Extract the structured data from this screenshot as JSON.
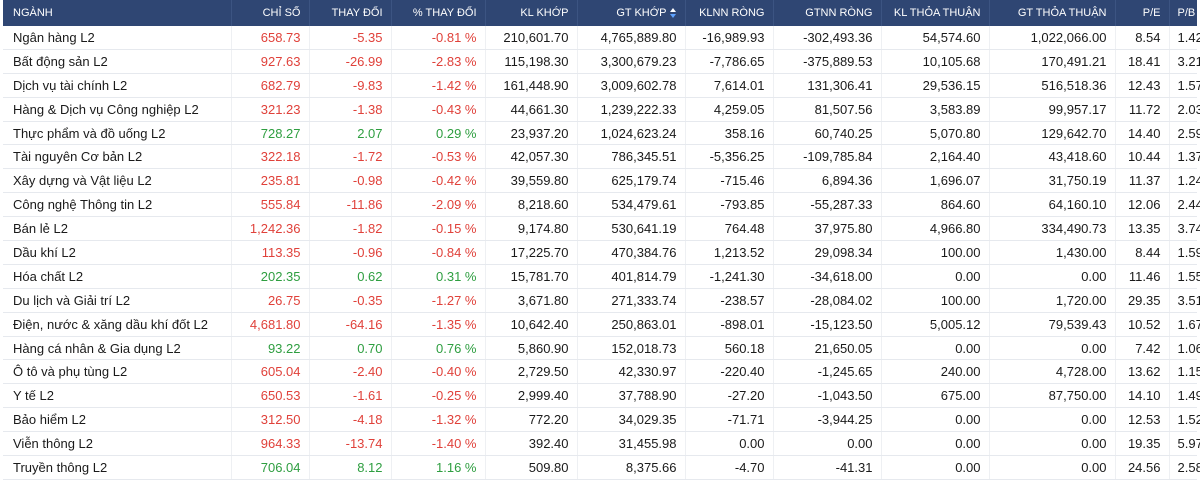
{
  "colors": {
    "header_bg": "#2f4673",
    "negative": "#e0413a",
    "positive": "#2e9e40"
  },
  "headers": {
    "nganh": "NGÀNH",
    "chi_so": "CHỈ SỐ",
    "thay_doi": "THAY ĐỔI",
    "pct_thay_doi": "% THAY ĐỔI",
    "kl_khop": "KL KHỚP",
    "gt_khop": "GT KHỚP",
    "klnn_rong": "KLNN RÒNG",
    "gtnn_rong": "GTNN RÒNG",
    "kl_thoa_thuan": "KL THỎA THUẬN",
    "gt_thoa_thuan": "GT THỎA THUẬN",
    "pe": "P/E",
    "pb": "P/B"
  },
  "sort": {
    "column": "gt_khop",
    "icon": "sort-icon"
  },
  "rows": [
    {
      "name": "Ngân hàng L2",
      "chi_so": "658.73",
      "thay_doi": "-5.35",
      "pct": "-0.81 %",
      "kl_khop": "210,601.70",
      "gt_khop": "4,765,889.80",
      "klnn": "-16,989.93",
      "gtnn": "-302,493.36",
      "kl_tt": "54,574.60",
      "gt_tt": "1,022,066.00",
      "pe": "8.54",
      "pb": "1.42",
      "dir": "neg"
    },
    {
      "name": "Bất động sản L2",
      "chi_so": "927.63",
      "thay_doi": "-26.99",
      "pct": "-2.83 %",
      "kl_khop": "115,198.30",
      "gt_khop": "3,300,679.23",
      "klnn": "-7,786.65",
      "gtnn": "-375,889.53",
      "kl_tt": "10,105.68",
      "gt_tt": "170,491.21",
      "pe": "18.41",
      "pb": "3.21",
      "dir": "neg"
    },
    {
      "name": "Dịch vụ tài chính L2",
      "chi_so": "682.79",
      "thay_doi": "-9.83",
      "pct": "-1.42 %",
      "kl_khop": "161,448.90",
      "gt_khop": "3,009,602.78",
      "klnn": "7,614.01",
      "gtnn": "131,306.41",
      "kl_tt": "29,536.15",
      "gt_tt": "516,518.36",
      "pe": "12.43",
      "pb": "1.57",
      "dir": "neg"
    },
    {
      "name": "Hàng & Dịch vụ Công nghiệp L2",
      "chi_so": "321.23",
      "thay_doi": "-1.38",
      "pct": "-0.43 %",
      "kl_khop": "44,661.30",
      "gt_khop": "1,239,222.33",
      "klnn": "4,259.05",
      "gtnn": "81,507.56",
      "kl_tt": "3,583.89",
      "gt_tt": "99,957.17",
      "pe": "11.72",
      "pb": "2.03",
      "dir": "neg"
    },
    {
      "name": "Thực phẩm và đồ uống L2",
      "chi_so": "728.27",
      "thay_doi": "2.07",
      "pct": "0.29 %",
      "kl_khop": "23,937.20",
      "gt_khop": "1,024,623.24",
      "klnn": "358.16",
      "gtnn": "60,740.25",
      "kl_tt": "5,070.80",
      "gt_tt": "129,642.70",
      "pe": "14.40",
      "pb": "2.59",
      "dir": "pos"
    },
    {
      "name": "Tài nguyên Cơ bản L2",
      "chi_so": "322.18",
      "thay_doi": "-1.72",
      "pct": "-0.53 %",
      "kl_khop": "42,057.30",
      "gt_khop": "786,345.51",
      "klnn": "-5,356.25",
      "gtnn": "-109,785.84",
      "kl_tt": "2,164.40",
      "gt_tt": "43,418.60",
      "pe": "10.44",
      "pb": "1.37",
      "dir": "neg"
    },
    {
      "name": "Xây dựng và Vật liệu L2",
      "chi_so": "235.81",
      "thay_doi": "-0.98",
      "pct": "-0.42 %",
      "kl_khop": "39,559.80",
      "gt_khop": "625,179.74",
      "klnn": "-715.46",
      "gtnn": "6,894.36",
      "kl_tt": "1,696.07",
      "gt_tt": "31,750.19",
      "pe": "11.37",
      "pb": "1.24",
      "dir": "neg"
    },
    {
      "name": "Công nghệ Thông tin L2",
      "chi_so": "555.84",
      "thay_doi": "-11.86",
      "pct": "-2.09 %",
      "kl_khop": "8,218.60",
      "gt_khop": "534,479.61",
      "klnn": "-793.85",
      "gtnn": "-55,287.33",
      "kl_tt": "864.60",
      "gt_tt": "64,160.10",
      "pe": "12.06",
      "pb": "2.44",
      "dir": "neg"
    },
    {
      "name": "Bán lẻ L2",
      "chi_so": "1,242.36",
      "thay_doi": "-1.82",
      "pct": "-0.15 %",
      "kl_khop": "9,174.80",
      "gt_khop": "530,641.19",
      "klnn": "764.48",
      "gtnn": "37,975.80",
      "kl_tt": "4,966.80",
      "gt_tt": "334,490.73",
      "pe": "13.35",
      "pb": "3.74",
      "dir": "neg"
    },
    {
      "name": "Dầu khí L2",
      "chi_so": "113.35",
      "thay_doi": "-0.96",
      "pct": "-0.84 %",
      "kl_khop": "17,225.70",
      "gt_khop": "470,384.76",
      "klnn": "1,213.52",
      "gtnn": "29,098.34",
      "kl_tt": "100.00",
      "gt_tt": "1,430.00",
      "pe": "8.44",
      "pb": "1.59",
      "dir": "neg"
    },
    {
      "name": "Hóa chất L2",
      "chi_so": "202.35",
      "thay_doi": "0.62",
      "pct": "0.31 %",
      "kl_khop": "15,781.70",
      "gt_khop": "401,814.79",
      "klnn": "-1,241.30",
      "gtnn": "-34,618.00",
      "kl_tt": "0.00",
      "gt_tt": "0.00",
      "pe": "11.46",
      "pb": "1.55",
      "dir": "pos"
    },
    {
      "name": "Du lịch và Giải trí L2",
      "chi_so": "26.75",
      "thay_doi": "-0.35",
      "pct": "-1.27 %",
      "kl_khop": "3,671.80",
      "gt_khop": "271,333.74",
      "klnn": "-238.57",
      "gtnn": "-28,084.02",
      "kl_tt": "100.00",
      "gt_tt": "1,720.00",
      "pe": "29.35",
      "pb": "3.51",
      "dir": "neg"
    },
    {
      "name": "Điện, nước & xăng dầu khí đốt L2",
      "chi_so": "4,681.80",
      "thay_doi": "-64.16",
      "pct": "-1.35 %",
      "kl_khop": "10,642.40",
      "gt_khop": "250,863.01",
      "klnn": "-898.01",
      "gtnn": "-15,123.50",
      "kl_tt": "5,005.12",
      "gt_tt": "79,539.43",
      "pe": "10.52",
      "pb": "1.67",
      "dir": "neg"
    },
    {
      "name": "Hàng cá nhân & Gia dụng L2",
      "chi_so": "93.22",
      "thay_doi": "0.70",
      "pct": "0.76 %",
      "kl_khop": "5,860.90",
      "gt_khop": "152,018.73",
      "klnn": "560.18",
      "gtnn": "21,650.05",
      "kl_tt": "0.00",
      "gt_tt": "0.00",
      "pe": "7.42",
      "pb": "1.06",
      "dir": "pos"
    },
    {
      "name": "Ô tô và phụ tùng L2",
      "chi_so": "605.04",
      "thay_doi": "-2.40",
      "pct": "-0.40 %",
      "kl_khop": "2,729.50",
      "gt_khop": "42,330.97",
      "klnn": "-220.40",
      "gtnn": "-1,245.65",
      "kl_tt": "240.00",
      "gt_tt": "4,728.00",
      "pe": "13.62",
      "pb": "1.15",
      "dir": "neg"
    },
    {
      "name": "Y tế L2",
      "chi_so": "650.53",
      "thay_doi": "-1.61",
      "pct": "-0.25 %",
      "kl_khop": "2,999.40",
      "gt_khop": "37,788.90",
      "klnn": "-27.20",
      "gtnn": "-1,043.50",
      "kl_tt": "675.00",
      "gt_tt": "87,750.00",
      "pe": "14.10",
      "pb": "1.49",
      "dir": "neg"
    },
    {
      "name": "Bảo hiểm L2",
      "chi_so": "312.50",
      "thay_doi": "-4.18",
      "pct": "-1.32 %",
      "kl_khop": "772.20",
      "gt_khop": "34,029.35",
      "klnn": "-71.71",
      "gtnn": "-3,944.25",
      "kl_tt": "0.00",
      "gt_tt": "0.00",
      "pe": "12.53",
      "pb": "1.52",
      "dir": "neg"
    },
    {
      "name": "Viễn thông L2",
      "chi_so": "964.33",
      "thay_doi": "-13.74",
      "pct": "-1.40 %",
      "kl_khop": "392.40",
      "gt_khop": "31,455.98",
      "klnn": "0.00",
      "gtnn": "0.00",
      "kl_tt": "0.00",
      "gt_tt": "0.00",
      "pe": "19.35",
      "pb": "5.97",
      "dir": "neg"
    },
    {
      "name": "Truyền thông L2",
      "chi_so": "706.04",
      "thay_doi": "8.12",
      "pct": "1.16 %",
      "kl_khop": "509.80",
      "gt_khop": "8,375.66",
      "klnn": "-4.70",
      "gtnn": "-41.31",
      "kl_tt": "0.00",
      "gt_tt": "0.00",
      "pe": "24.56",
      "pb": "2.58",
      "dir": "pos"
    }
  ]
}
